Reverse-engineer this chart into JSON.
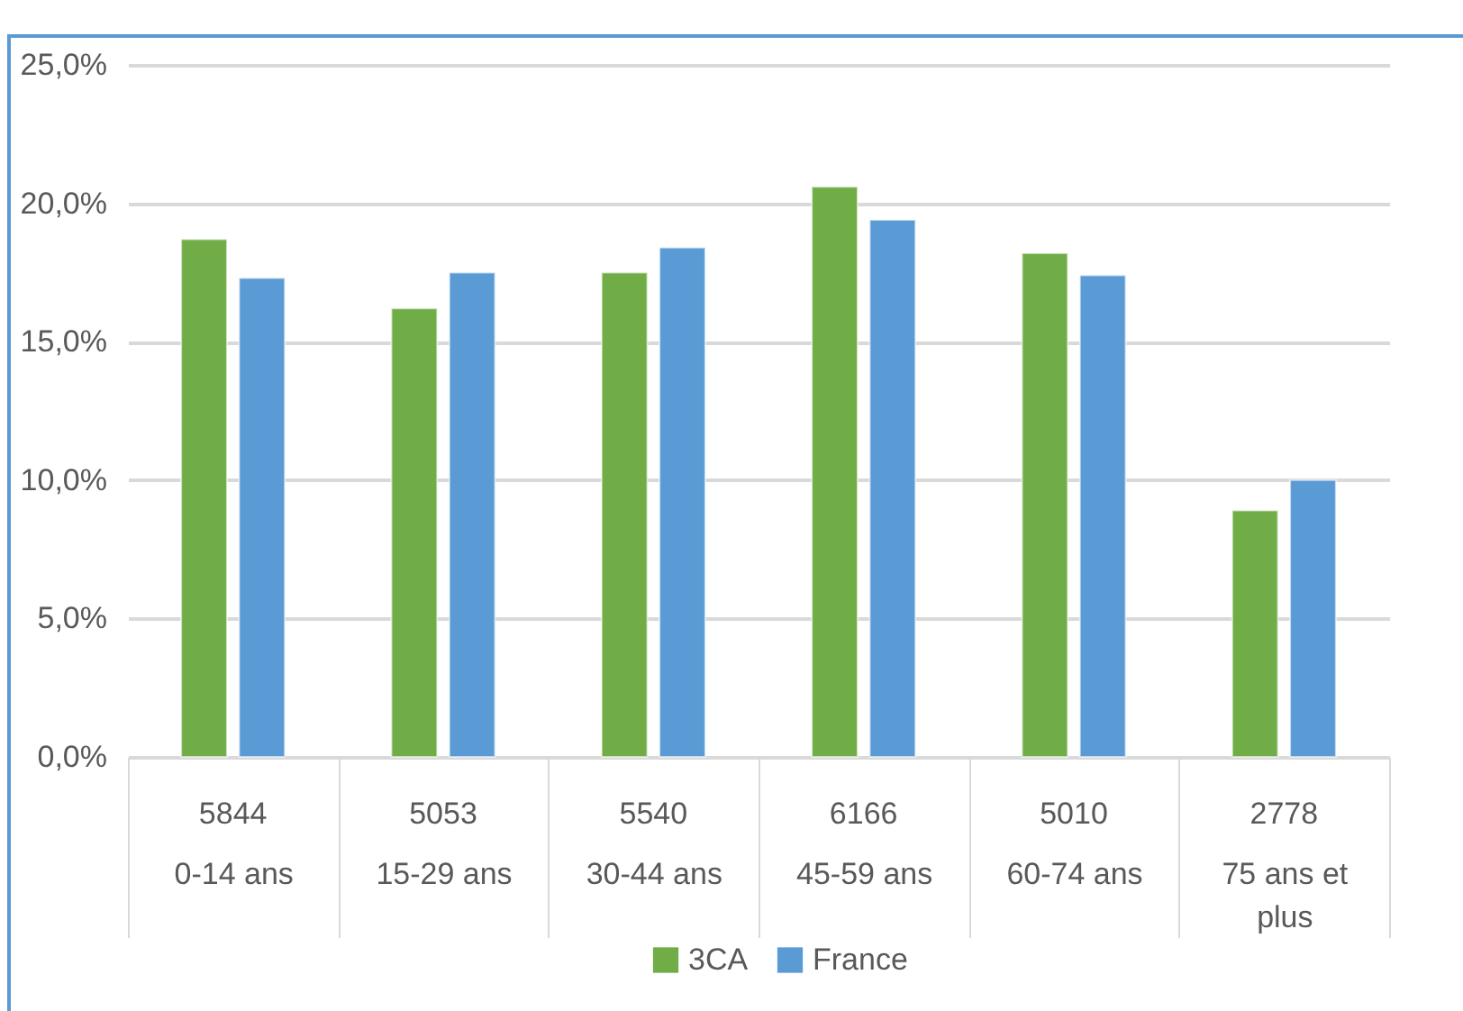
{
  "chart_data": {
    "type": "bar",
    "categories": [
      "0-14 ans",
      "15-29 ans",
      "30-44 ans",
      "45-59 ans",
      "60-74 ans",
      "75 ans et plus"
    ],
    "series": [
      {
        "name": "3CA",
        "color": "#70ad47",
        "values": [
          18.7,
          16.2,
          17.5,
          20.6,
          18.2,
          8.9
        ]
      },
      {
        "name": "France",
        "color": "#5b9bd5",
        "values": [
          17.3,
          17.5,
          18.4,
          19.4,
          17.4,
          10.0
        ]
      }
    ],
    "ylim": [
      0,
      25
    ],
    "yticks": [
      {
        "value": 0,
        "label": "0,0%"
      },
      {
        "value": 5,
        "label": "5,0%"
      },
      {
        "value": 10,
        "label": "10,0%"
      },
      {
        "value": 15,
        "label": "15,0%"
      },
      {
        "value": 20,
        "label": "20,0%"
      },
      {
        "value": 25,
        "label": "25,0%"
      }
    ],
    "annotations": [
      "5844",
      "5053",
      "5540",
      "6166",
      "5010",
      "2778"
    ],
    "grid": "y",
    "legend": "bottom"
  }
}
